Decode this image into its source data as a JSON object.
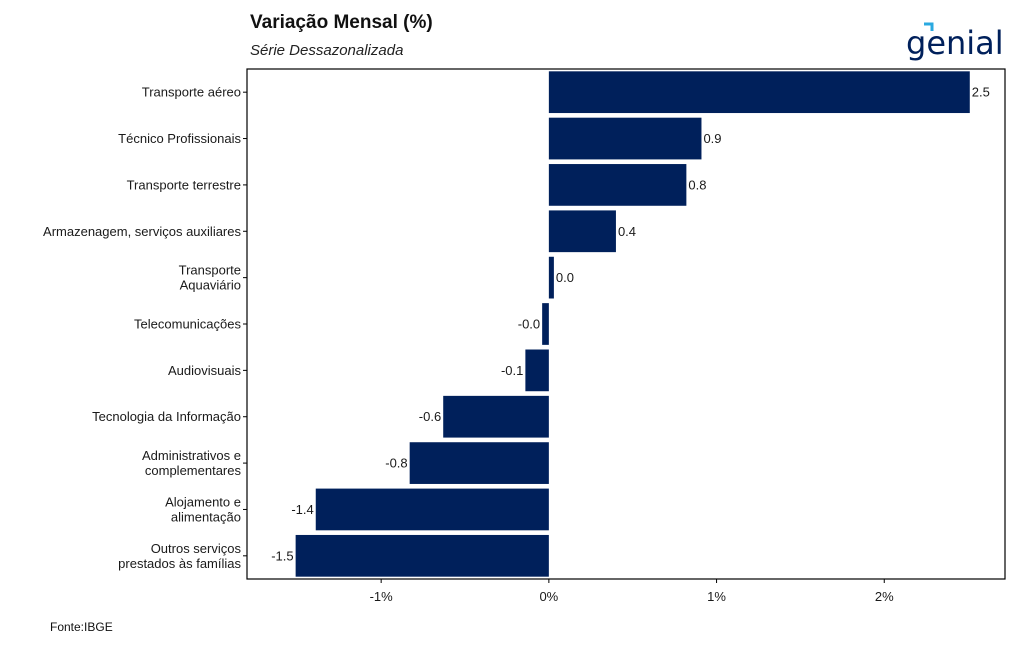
{
  "header": {
    "title": "Variação Mensal (%)",
    "subtitle": "Série Dessazonalizada",
    "logo_text": "genial"
  },
  "footer": {
    "source": "Fonte:IBGE"
  },
  "colors": {
    "bar": "#00205b",
    "axis": "#000000",
    "logo": "#00205b",
    "logo_accent": "#2aa9e0"
  },
  "chart_data": {
    "type": "bar",
    "orientation": "horizontal",
    "title": "Variação Mensal (%)",
    "subtitle": "Série Dessazonalizada",
    "categories": [
      [
        "Transporte aéreo"
      ],
      [
        "Técnico Profissionais"
      ],
      [
        "Transporte terrestre"
      ],
      [
        "Armazenagem, serviços auxiliares"
      ],
      [
        "Transporte",
        "Aquaviário"
      ],
      [
        "Telecomunicações"
      ],
      [
        "Audiovisuais"
      ],
      [
        "Tecnologia da Informação"
      ],
      [
        "Administrativos e",
        "complementares"
      ],
      [
        "Alojamento e",
        "alimentação"
      ],
      [
        "Outros serviços",
        "prestados às famílias"
      ]
    ],
    "values": [
      2.51,
      0.91,
      0.82,
      0.4,
      0.03,
      -0.04,
      -0.14,
      -0.63,
      -0.83,
      -1.39,
      -1.51
    ],
    "value_labels": [
      "2.5",
      "0.9",
      "0.8",
      "0.4",
      "0.0",
      "-0.0",
      "-0.1",
      "-0.6",
      "-0.8",
      "-1.4",
      "-1.5"
    ],
    "xlim": [
      -1.8,
      2.72
    ],
    "xticks": [
      -1,
      0,
      1,
      2
    ],
    "xtick_labels": [
      "-1%",
      "0%",
      "1%",
      "2%"
    ],
    "grid": false,
    "legend": "none"
  }
}
